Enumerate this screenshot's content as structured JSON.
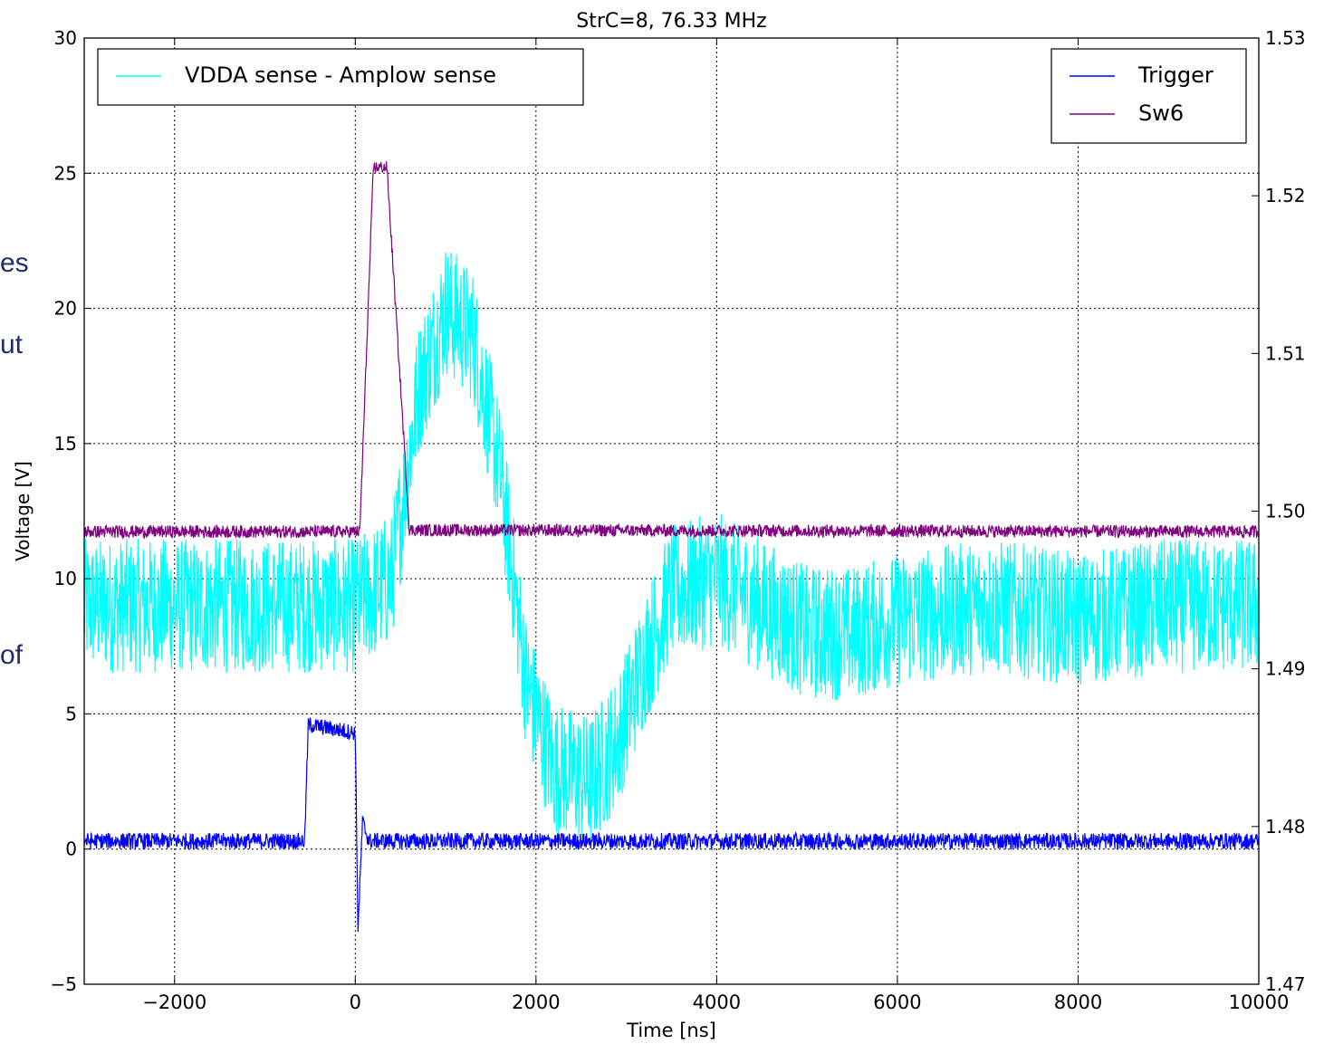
{
  "side_text": {
    "fragment1": "es",
    "fragment2": "ut",
    "fragment3": "of"
  },
  "colors": {
    "vdda": "#00ffff",
    "trigger": "#0000ff",
    "sw6": "#800080",
    "grid": "#000000",
    "side_text": "#1f2d6b"
  },
  "chart_data": {
    "type": "line",
    "title": "StrC=8, 76.33 MHz",
    "xlabel": "Time [ns]",
    "ylabel": "Voltage [V]",
    "xlim": [
      -3000,
      10000
    ],
    "ylim": [
      -5,
      30
    ],
    "y2lim": [
      1.47,
      1.53
    ],
    "grid": true,
    "x_ticks": [
      -2000,
      0,
      2000,
      4000,
      6000,
      8000,
      10000
    ],
    "x_tick_labels": [
      "−2000",
      "0",
      "2000",
      "4000",
      "6000",
      "8000",
      "10000"
    ],
    "y_ticks": [
      -5,
      0,
      5,
      10,
      15,
      20,
      25,
      30
    ],
    "y_tick_labels": [
      "−5",
      "0",
      "5",
      "10",
      "15",
      "20",
      "25",
      "30"
    ],
    "y2_ticks": [
      1.47,
      1.48,
      1.49,
      1.5,
      1.51,
      1.52,
      1.53
    ],
    "y2_tick_labels": [
      "1.47",
      "1.48",
      "1.49",
      "1.50",
      "1.51",
      "1.52",
      "1.53"
    ],
    "legend_left": {
      "placement": "top-left",
      "entries": [
        "VDDA sense - Amplow sense"
      ]
    },
    "legend_right": {
      "placement": "top-right",
      "entries": [
        "Trigger",
        "Sw6"
      ]
    },
    "series": [
      {
        "name": "VDDA sense - Amplow sense",
        "axis": "left",
        "color": "#00ffff",
        "noise": 2.5,
        "points": [
          [
            -3000,
            9
          ],
          [
            -500,
            9
          ],
          [
            0,
            9
          ],
          [
            400,
            10
          ],
          [
            700,
            17
          ],
          [
            1000,
            20
          ],
          [
            1300,
            19
          ],
          [
            1600,
            14
          ],
          [
            1900,
            6
          ],
          [
            2200,
            3
          ],
          [
            2600,
            2.5
          ],
          [
            2900,
            4
          ],
          [
            3200,
            7
          ],
          [
            3500,
            9.5
          ],
          [
            4000,
            10
          ],
          [
            4500,
            9
          ],
          [
            5000,
            8
          ],
          [
            5500,
            8
          ],
          [
            6000,
            8.5
          ],
          [
            7000,
            9
          ],
          [
            8000,
            8.5
          ],
          [
            9000,
            9
          ],
          [
            10000,
            9
          ]
        ]
      },
      {
        "name": "Trigger",
        "axis": "left",
        "color": "#0000ff",
        "noise": 0.3,
        "points": [
          [
            -3000,
            0.3
          ],
          [
            -560,
            0.3
          ],
          [
            -520,
            4.6
          ],
          [
            0,
            4.3
          ],
          [
            30,
            -3
          ],
          [
            80,
            1
          ],
          [
            150,
            0.3
          ],
          [
            10000,
            0.3
          ]
        ]
      },
      {
        "name": "Sw6",
        "axis": "right",
        "color": "#800080",
        "noise": 0.0004,
        "points": [
          [
            -3000,
            1.4987
          ],
          [
            50,
            1.4987
          ],
          [
            200,
            1.5218
          ],
          [
            350,
            1.5218
          ],
          [
            600,
            1.4988
          ],
          [
            10000,
            1.4987
          ]
        ]
      }
    ]
  }
}
